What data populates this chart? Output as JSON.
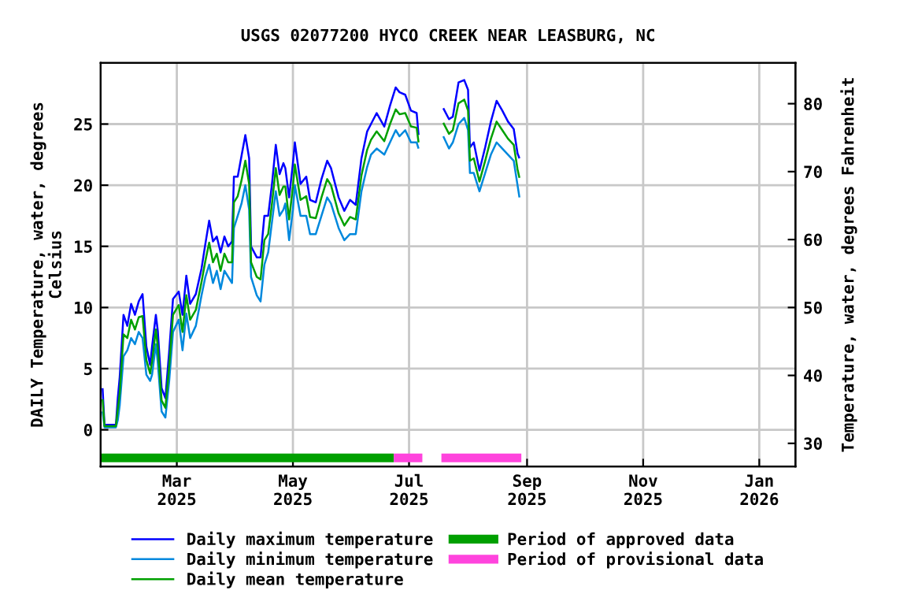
{
  "chart_data": {
    "type": "line",
    "title": "USGS 02077200 HYCO CREEK NEAR LEASBURG, NC",
    "ylabel": "DAILY Temperature, water, degrees\nCelsius",
    "y2label": "Temperature, water, degrees Fahrenheit",
    "x": [
      "2025-01-21",
      "2025-01-22",
      "2025-01-28",
      "2025-01-29",
      "2025-01-30",
      "2025-02-01",
      "2025-02-03",
      "2025-02-05",
      "2025-02-07",
      "2025-02-09",
      "2025-02-11",
      "2025-02-13",
      "2025-02-15",
      "2025-02-16",
      "2025-02-18",
      "2025-02-19",
      "2025-02-21",
      "2025-02-23",
      "2025-02-25",
      "2025-02-27",
      "2025-03-02",
      "2025-03-04",
      "2025-03-06",
      "2025-03-08",
      "2025-03-11",
      "2025-03-14",
      "2025-03-16",
      "2025-03-18",
      "2025-03-20",
      "2025-03-22",
      "2025-03-24",
      "2025-03-26",
      "2025-03-28",
      "2025-03-30",
      "2025-03-31",
      "2025-04-02",
      "2025-04-04",
      "2025-04-06",
      "2025-04-08",
      "2025-04-09",
      "2025-04-12",
      "2025-04-14",
      "2025-04-16",
      "2025-04-18",
      "2025-04-20",
      "2025-04-22",
      "2025-04-24",
      "2025-04-26",
      "2025-04-27",
      "2025-04-29",
      "2025-05-01",
      "2025-05-02",
      "2025-05-05",
      "2025-05-08",
      "2025-05-10",
      "2025-05-13",
      "2025-05-16",
      "2025-05-19",
      "2025-05-21",
      "2025-05-25",
      "2025-05-28",
      "2025-05-31",
      "2025-06-03",
      "2025-06-06",
      "2025-06-09",
      "2025-06-11",
      "2025-06-14",
      "2025-06-18",
      "2025-06-21",
      "2025-06-24",
      "2025-06-26",
      "2025-06-29",
      "2025-07-02",
      "2025-07-05",
      "2025-07-06",
      "2025-07-12",
      "2025-07-19",
      "2025-07-22",
      "2025-07-24",
      "2025-07-27",
      "2025-07-30",
      "2025-08-01",
      "2025-08-02",
      "2025-08-04",
      "2025-08-07",
      "2025-08-10",
      "2025-08-13",
      "2025-08-16",
      "2025-08-19",
      "2025-08-22",
      "2025-08-25",
      "2025-08-27",
      "2025-08-28"
    ],
    "series": [
      {
        "name": "Daily maximum temperature",
        "color": "#0000ff",
        "values": [
          3.4,
          0.4,
          0.4,
          2.6,
          4.3,
          9.4,
          8.5,
          10.3,
          9.4,
          10.5,
          11.1,
          6.8,
          5.3,
          6.8,
          9.4,
          8.1,
          3.4,
          2.6,
          6.4,
          10.7,
          11.3,
          9.4,
          12.6,
          10.3,
          11.1,
          13.2,
          15.2,
          17.1,
          15.4,
          15.8,
          14.5,
          15.8,
          15.0,
          15.4,
          20.7,
          20.7,
          22.4,
          24.1,
          22.2,
          15.0,
          14.1,
          14.1,
          17.5,
          17.5,
          20.1,
          23.3,
          20.9,
          21.8,
          21.4,
          19.0,
          21.8,
          23.5,
          20.1,
          20.7,
          18.8,
          18.6,
          20.5,
          22.0,
          21.4,
          19.0,
          17.9,
          18.8,
          18.4,
          22.2,
          24.4,
          25.0,
          25.9,
          24.8,
          26.5,
          28.0,
          27.6,
          27.4,
          26.1,
          25.9,
          24.1,
          null,
          26.3,
          25.4,
          25.6,
          28.4,
          28.6,
          27.8,
          23.1,
          23.5,
          21.2,
          23.1,
          25.2,
          26.9,
          26.1,
          25.2,
          24.6,
          22.6,
          22.2
        ]
      },
      {
        "name": "Daily minimum temperature",
        "color": "#0088dd",
        "values": [
          1.5,
          0.2,
          0.2,
          0.8,
          2.0,
          6.0,
          6.5,
          7.5,
          7.0,
          8.0,
          7.5,
          4.5,
          4.0,
          4.5,
          7.0,
          5.5,
          1.5,
          1.0,
          4.0,
          8.0,
          9.0,
          6.5,
          9.5,
          7.5,
          8.5,
          11.0,
          12.5,
          13.5,
          12.0,
          13.0,
          11.5,
          13.0,
          12.5,
          12.0,
          16.5,
          17.5,
          18.5,
          20.0,
          18.0,
          12.5,
          11.0,
          10.5,
          13.5,
          14.5,
          17.0,
          19.5,
          17.5,
          18.0,
          18.5,
          15.5,
          18.0,
          20.0,
          17.5,
          17.5,
          16.0,
          16.0,
          17.5,
          19.0,
          18.5,
          16.5,
          15.5,
          16.0,
          16.0,
          19.5,
          21.5,
          22.5,
          23.0,
          22.5,
          23.5,
          24.5,
          24.0,
          24.5,
          23.5,
          23.5,
          23.0,
          null,
          24.0,
          23.0,
          23.5,
          25.0,
          25.5,
          24.5,
          21.0,
          21.0,
          19.5,
          21.0,
          22.5,
          23.5,
          23.0,
          22.5,
          22.0,
          20.0,
          19.0
        ]
      },
      {
        "name": "Daily mean temperature",
        "color": "#00a000",
        "values": [
          2.5,
          0.3,
          0.3,
          1.7,
          3.0,
          7.8,
          7.5,
          9.0,
          8.2,
          9.2,
          9.3,
          5.7,
          4.6,
          5.6,
          8.2,
          6.8,
          2.4,
          1.8,
          5.2,
          9.4,
          10.2,
          8.0,
          11.0,
          9.0,
          9.8,
          12.1,
          13.8,
          15.3,
          13.7,
          14.4,
          13.0,
          14.4,
          13.7,
          13.7,
          18.6,
          19.1,
          20.4,
          22.0,
          20.1,
          13.7,
          12.5,
          12.3,
          15.5,
          16.0,
          18.5,
          21.4,
          19.2,
          19.9,
          19.9,
          17.2,
          19.9,
          21.7,
          18.8,
          19.1,
          17.4,
          17.3,
          19.0,
          20.5,
          20.0,
          17.7,
          16.7,
          17.4,
          17.2,
          20.8,
          22.9,
          23.7,
          24.4,
          23.6,
          25.0,
          26.2,
          25.8,
          25.9,
          24.8,
          24.7,
          23.5,
          null,
          25.1,
          24.2,
          24.5,
          26.7,
          27.0,
          26.1,
          22.0,
          22.2,
          20.3,
          22.0,
          23.8,
          25.2,
          24.5,
          23.8,
          23.3,
          21.3,
          20.6
        ]
      },
      {
        "name": "Period of approved data",
        "color": "#00a000",
        "x": [
          "2025-01-20",
          "2025-06-23"
        ],
        "values": [
          -2.3,
          -2.3
        ]
      },
      {
        "name": "Period of provisional data",
        "color": "#ff44dd",
        "x": [
          "2025-06-23",
          "2025-07-08",
          "2025-07-12",
          "2025-07-18",
          "2025-08-29"
        ],
        "values": [
          -2.3,
          -2.3,
          null,
          -2.3,
          -2.3
        ]
      }
    ],
    "xlim": [
      "2025-01-20",
      "2026-01-20"
    ],
    "xticks": [
      {
        "value": "2025-03-01",
        "label": "Mar\n2025"
      },
      {
        "value": "2025-05-01",
        "label": "May\n2025"
      },
      {
        "value": "2025-07-01",
        "label": "Jul\n2025"
      },
      {
        "value": "2025-09-01",
        "label": "Sep\n2025"
      },
      {
        "value": "2025-11-01",
        "label": "Nov\n2025"
      },
      {
        "value": "2026-01-01",
        "label": "Jan\n2026"
      }
    ],
    "ylim": [
      -3,
      30
    ],
    "yticks": [
      0,
      5,
      10,
      15,
      20,
      25
    ],
    "y2lim": [
      26.6,
      86
    ],
    "y2ticks": [
      30,
      40,
      50,
      60,
      70,
      80
    ],
    "grid": true,
    "legend": "bottom",
    "marker": "none",
    "line_style": "solid"
  }
}
